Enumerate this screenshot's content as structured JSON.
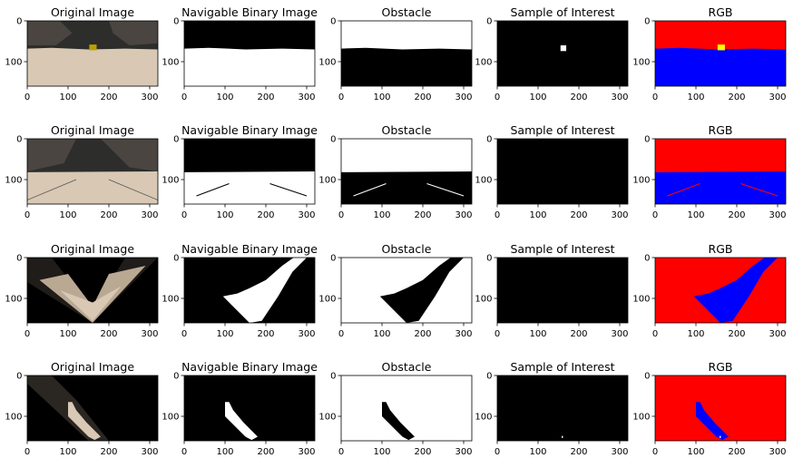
{
  "chart_data": {
    "type": "image_grid",
    "rows": 4,
    "cols": 5,
    "column_titles": [
      "Original Image",
      "Navigable Binary Image",
      "Obstacle",
      "Sample of Interest",
      "RGB"
    ],
    "x_ticks": [
      "0",
      "100",
      "200",
      "300"
    ],
    "y_ticks": [
      "0",
      "100"
    ],
    "xlim": [
      0,
      320
    ],
    "ylim": [
      160,
      0
    ],
    "colors": {
      "black": "#000000",
      "white": "#ffffff",
      "red": "#ff0000",
      "blue": "#0000ff",
      "yellow": "#ffff00",
      "sky": "#2d2d2b",
      "rock": "#4a4540",
      "ground": "#d8c8b4",
      "ground_dark": "#b9a892"
    }
  }
}
